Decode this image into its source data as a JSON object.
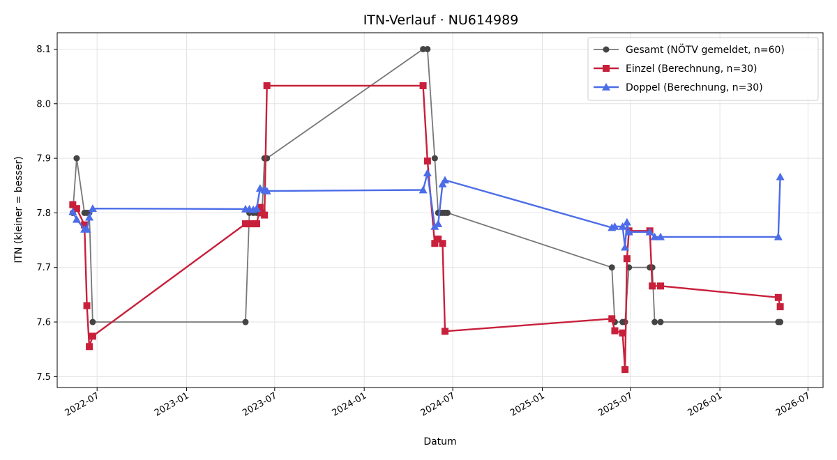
{
  "chart_data": {
    "type": "line",
    "title": "ITN-Verlauf · NU614989",
    "xlabel": "Datum",
    "ylabel": "ITN  (kleiner = besser)",
    "x_type": "date",
    "xlim": [
      "2022-04-10",
      "2026-08-01"
    ],
    "ylim": [
      7.48,
      8.13
    ],
    "x_ticks": [
      "2022-07",
      "2023-01",
      "2023-07",
      "2024-01",
      "2024-07",
      "2025-01",
      "2025-07",
      "2026-01",
      "2026-07"
    ],
    "y_ticks": [
      7.5,
      7.6,
      7.7,
      7.8,
      7.9,
      8.0,
      8.1
    ],
    "grid": true,
    "legend_position": "top-right",
    "series": [
      {
        "name": "Gesamt (NÖTV gemeldet, n=60)",
        "color": "#777777",
        "marker": "circle",
        "marker_color": "#444444",
        "points": [
          [
            "2022-05-12",
            7.8
          ],
          [
            "2022-05-20",
            7.9
          ],
          [
            "2022-06-05",
            7.8
          ],
          [
            "2022-06-10",
            7.8
          ],
          [
            "2022-06-15",
            7.8
          ],
          [
            "2022-06-22",
            7.6
          ],
          [
            "2023-05-02",
            7.6
          ],
          [
            "2023-05-10",
            7.8
          ],
          [
            "2023-05-18",
            7.8
          ],
          [
            "2023-05-25",
            7.8
          ],
          [
            "2023-06-01",
            7.8
          ],
          [
            "2023-06-05",
            7.8
          ],
          [
            "2023-06-10",
            7.9
          ],
          [
            "2023-06-15",
            7.9
          ],
          [
            "2024-05-01",
            8.1
          ],
          [
            "2024-05-10",
            8.1
          ],
          [
            "2024-05-25",
            7.9
          ],
          [
            "2024-06-01",
            7.8
          ],
          [
            "2024-06-05",
            7.8
          ],
          [
            "2024-06-10",
            7.8
          ],
          [
            "2024-06-15",
            7.8
          ],
          [
            "2024-06-20",
            7.8
          ],
          [
            "2025-05-24",
            7.7
          ],
          [
            "2025-05-30",
            7.6
          ],
          [
            "2025-06-15",
            7.6
          ],
          [
            "2025-06-20",
            7.6
          ],
          [
            "2025-06-28",
            7.7
          ],
          [
            "2025-08-10",
            7.7
          ],
          [
            "2025-08-15",
            7.7
          ],
          [
            "2025-08-20",
            7.6
          ],
          [
            "2025-09-01",
            7.6
          ],
          [
            "2026-05-01",
            7.6
          ],
          [
            "2026-05-05",
            7.6
          ]
        ]
      },
      {
        "name": "Einzel (Berechnung, n=30)",
        "color": "#c8203b",
        "marker": "square",
        "marker_color": "#c8203b",
        "points": [
          [
            "2022-05-12",
            7.815
          ],
          [
            "2022-05-20",
            7.808
          ],
          [
            "2022-06-05",
            7.778
          ],
          [
            "2022-06-10",
            7.63
          ],
          [
            "2022-06-15",
            7.555
          ],
          [
            "2022-06-22",
            7.574
          ],
          [
            "2023-05-02",
            7.78
          ],
          [
            "2023-05-10",
            7.78
          ],
          [
            "2023-05-18",
            7.78
          ],
          [
            "2023-05-25",
            7.78
          ],
          [
            "2023-06-01",
            7.81
          ],
          [
            "2023-06-05",
            7.8
          ],
          [
            "2023-06-10",
            7.796
          ],
          [
            "2023-06-15",
            8.033
          ],
          [
            "2024-05-01",
            8.033
          ],
          [
            "2024-05-10",
            7.895
          ],
          [
            "2024-05-25",
            7.744
          ],
          [
            "2024-06-01",
            7.752
          ],
          [
            "2024-06-10",
            7.744
          ],
          [
            "2024-06-15",
            7.583
          ],
          [
            "2025-05-24",
            7.606
          ],
          [
            "2025-05-30",
            7.584
          ],
          [
            "2025-06-15",
            7.58
          ],
          [
            "2025-06-20",
            7.513
          ],
          [
            "2025-06-24",
            7.716
          ],
          [
            "2025-06-28",
            7.767
          ],
          [
            "2025-08-10",
            7.767
          ],
          [
            "2025-08-15",
            7.666
          ],
          [
            "2025-09-01",
            7.666
          ],
          [
            "2026-05-01",
            7.645
          ],
          [
            "2026-05-05",
            7.628
          ]
        ]
      },
      {
        "name": "Doppel (Berechnung, n=30)",
        "color": "#4c6ce8",
        "marker": "triangle",
        "marker_color": "#4c6ce8",
        "points": [
          [
            "2022-05-12",
            7.802
          ],
          [
            "2022-05-20",
            7.788
          ],
          [
            "2022-06-05",
            7.77
          ],
          [
            "2022-06-10",
            7.77
          ],
          [
            "2022-06-15",
            7.792
          ],
          [
            "2022-06-22",
            7.808
          ],
          [
            "2023-05-02",
            7.807
          ],
          [
            "2023-05-10",
            7.807
          ],
          [
            "2023-05-18",
            7.806
          ],
          [
            "2023-05-25",
            7.808
          ],
          [
            "2023-06-01",
            7.845
          ],
          [
            "2023-06-10",
            7.842
          ],
          [
            "2023-06-15",
            7.84
          ],
          [
            "2024-05-01",
            7.842
          ],
          [
            "2024-05-10",
            7.873
          ],
          [
            "2024-05-25",
            7.775
          ],
          [
            "2024-06-01",
            7.78
          ],
          [
            "2024-06-10",
            7.853
          ],
          [
            "2024-06-15",
            7.86
          ],
          [
            "2025-05-24",
            7.773
          ],
          [
            "2025-05-30",
            7.775
          ],
          [
            "2025-06-15",
            7.775
          ],
          [
            "2025-06-20",
            7.737
          ],
          [
            "2025-06-24",
            7.783
          ],
          [
            "2025-06-28",
            7.765
          ],
          [
            "2025-08-10",
            7.765
          ],
          [
            "2025-08-20",
            7.756
          ],
          [
            "2025-09-01",
            7.756
          ],
          [
            "2026-05-01",
            7.756
          ],
          [
            "2026-05-05",
            7.866
          ]
        ]
      }
    ]
  }
}
